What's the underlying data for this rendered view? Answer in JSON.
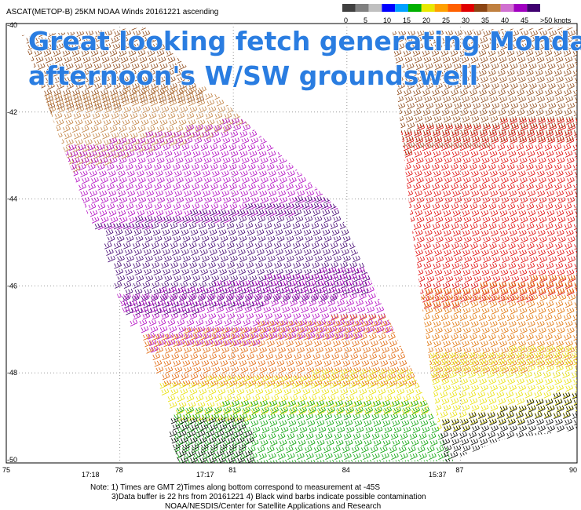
{
  "header": {
    "title": "ASCAT(METOP-B) 25KM NOAA Winds 20161221 ascending",
    "color_scale": {
      "labels": [
        "0",
        "5",
        "10",
        "15",
        "20",
        "25",
        "30",
        "35",
        "40",
        "45",
        ">50 knots"
      ],
      "colors": [
        "#404040",
        "#808080",
        "#c0c0c0",
        "#0000ff",
        "#00a0ff",
        "#00b000",
        "#e8e800",
        "#ffa000",
        "#ff6000",
        "#e00000",
        "#8b4513",
        "#c08040",
        "#d070d0",
        "#a000c0",
        "#400070"
      ]
    }
  },
  "overlay_title": [
    "Great looking fetch generating Monday",
    "afternoon's W/SW groundswell"
  ],
  "map": {
    "lat_labels": [
      "-40",
      "-42",
      "-44",
      "-46",
      "-48",
      "-50"
    ],
    "lon_labels": [
      "75",
      "78",
      "81",
      "84",
      "87",
      "90"
    ],
    "times": [
      "17:18",
      "17:17",
      "15:37"
    ]
  },
  "notes": [
    "Note: 1) Times are GMT 2)Times along bottom correspond to measurement at -45S",
    "3)Data buffer is 22 hrs from 20161221 4) Black wind barbs indicate possible contamination",
    "NOAA/NESDIS/Center for Satellite Applications and Research"
  ]
}
